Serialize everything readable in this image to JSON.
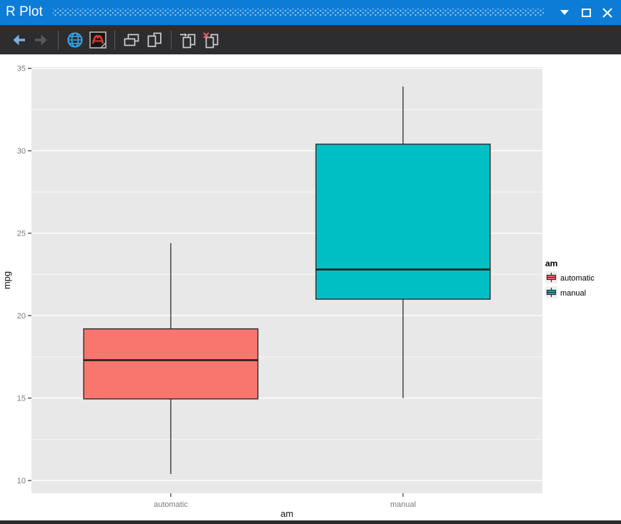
{
  "window": {
    "title": "R Plot",
    "titlebar_color": "#0D7CD6",
    "controls": [
      {
        "name": "window-position-menu",
        "icon": "chevron-down-icon"
      },
      {
        "name": "maximize",
        "icon": "maximize-icon"
      },
      {
        "name": "close",
        "icon": "close-icon"
      }
    ]
  },
  "toolbar": {
    "background": "#2D2D30",
    "buttons": [
      {
        "name": "history-previous",
        "icon": "arrow-left-icon",
        "enabled": true
      },
      {
        "name": "history-next",
        "icon": "arrow-right-icon",
        "enabled": false
      },
      {
        "name": "export-as-image",
        "icon": "globe-icon",
        "enabled": true
      },
      {
        "name": "export-as-pdf",
        "icon": "pdf-icon",
        "enabled": true
      },
      {
        "name": "copy-as-metafile",
        "icon": "copy-metafile-icon",
        "enabled": true
      },
      {
        "name": "copy-as-bitmap",
        "icon": "copy-bitmap-icon",
        "enabled": true
      },
      {
        "name": "new-plot-window",
        "icon": "window-arrow-icon",
        "enabled": true
      },
      {
        "name": "remove-plot",
        "icon": "window-remove-icon",
        "enabled": true
      }
    ]
  },
  "chart_data": {
    "type": "boxplot",
    "title": "",
    "xlabel": "am",
    "ylabel": "mpg",
    "categories": [
      "automatic",
      "manual"
    ],
    "series": [
      {
        "name": "automatic",
        "x": 1,
        "fill": "#F8766D",
        "min": 10.4,
        "q1": 14.95,
        "median": 17.3,
        "q3": 19.2,
        "max": 24.4
      },
      {
        "name": "manual",
        "x": 2,
        "fill": "#00BFC4",
        "min": 15.0,
        "q1": 21.0,
        "median": 22.8,
        "q3": 30.4,
        "max": 33.9
      }
    ],
    "y_ticks_major": [
      10,
      15,
      20,
      25,
      30,
      35
    ],
    "y_ticks_minor": [
      12.5,
      17.5,
      22.5,
      27.5,
      32.5
    ],
    "ylim": [
      9.225,
      35.075
    ],
    "xdomain": [
      0.4,
      2.6
    ],
    "box_width": 0.75,
    "legend": {
      "title": "am",
      "position": "right",
      "entries": [
        {
          "label": "automatic",
          "color": "#F8766D"
        },
        {
          "label": "manual",
          "color": "#00BFC4"
        }
      ]
    },
    "colors": {
      "figure_bg": "#FFFFFF",
      "panel_bg": "#E8E8E8",
      "grid_major": "#FFFFFF",
      "grid_minor": "rgba(255,255,255,0.6)",
      "box_stroke": "#2B2B2B",
      "median_stroke": "#1A1A1A",
      "tick_mark": "#333333",
      "tick_text": "#7A7A7A",
      "axis_title": "#111111",
      "legend_key_bg": "#EFEFEF"
    }
  }
}
